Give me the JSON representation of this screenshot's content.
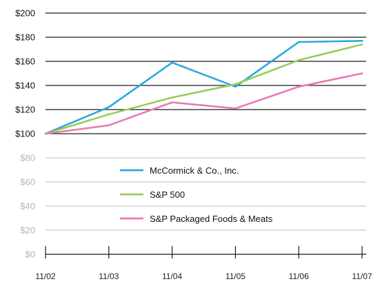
{
  "chart_data": {
    "type": "line",
    "title": "",
    "xlabel": "",
    "ylabel": "",
    "categories": [
      "11/02",
      "11/03",
      "11/04",
      "11/05",
      "11/06",
      "11/07"
    ],
    "y_tick_labels": [
      "$0",
      "$20",
      "$40",
      "$60",
      "$80",
      "$100",
      "$120",
      "$140",
      "$160",
      "$180",
      "$200"
    ],
    "ylim": [
      0,
      200
    ],
    "y_tick_step": 20,
    "grid": "horizontal",
    "legend_position": "lower-center",
    "series": [
      {
        "name": "McCormick & Co., Inc.",
        "color": "#29a9db",
        "values": [
          100,
          122,
          159,
          139,
          176,
          177
        ]
      },
      {
        "name": "S&P 500",
        "color": "#9acb5a",
        "values": [
          100,
          116,
          130,
          141,
          161,
          174
        ]
      },
      {
        "name": "S&P Packaged Foods & Meats",
        "color": "#e87ab4",
        "values": [
          100,
          107,
          126,
          121,
          139,
          150
        ]
      }
    ],
    "colors": {
      "grid_dark": "#1a1a1a",
      "grid_light": "#bdbdbd",
      "tick_dark": "#111111",
      "tick_light": "#b5b5b5"
    }
  }
}
